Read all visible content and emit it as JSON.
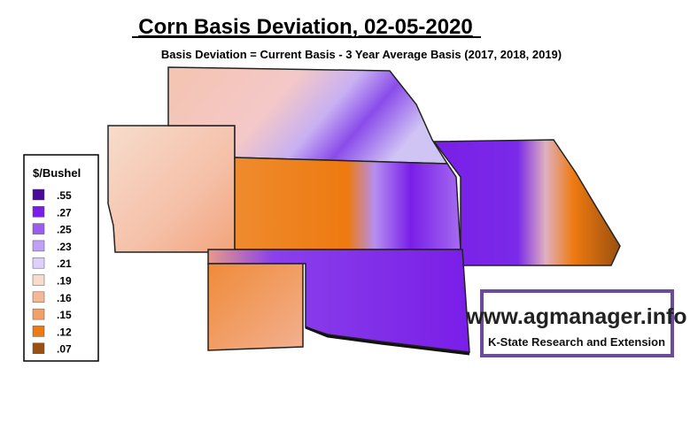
{
  "title": "Corn Basis Deviation, 02-05-2020",
  "subtitle": "Basis Deviation = Current Basis - 3 Year Average Basis (2017, 2018, 2019)",
  "legend": {
    "title": "$/Bushel",
    "items": [
      {
        "label": ".55",
        "color": "#4b0a99"
      },
      {
        "label": ".27",
        "color": "#7a1ee8"
      },
      {
        "label": ".25",
        "color": "#9d5cf0"
      },
      {
        "label": ".23",
        "color": "#c0a0f5"
      },
      {
        "label": ".21",
        "color": "#ddd0fa"
      },
      {
        "label": ".19",
        "color": "#f7dccc"
      },
      {
        "label": ".16",
        "color": "#f5b895"
      },
      {
        "label": ".15",
        "color": "#f3a066"
      },
      {
        "label": ".12",
        "color": "#ee7a10"
      },
      {
        "label": ".07",
        "color": "#9a5010"
      }
    ]
  },
  "logo": {
    "url": "www.agmanager.info",
    "org": "K-State Research and Extension"
  }
}
